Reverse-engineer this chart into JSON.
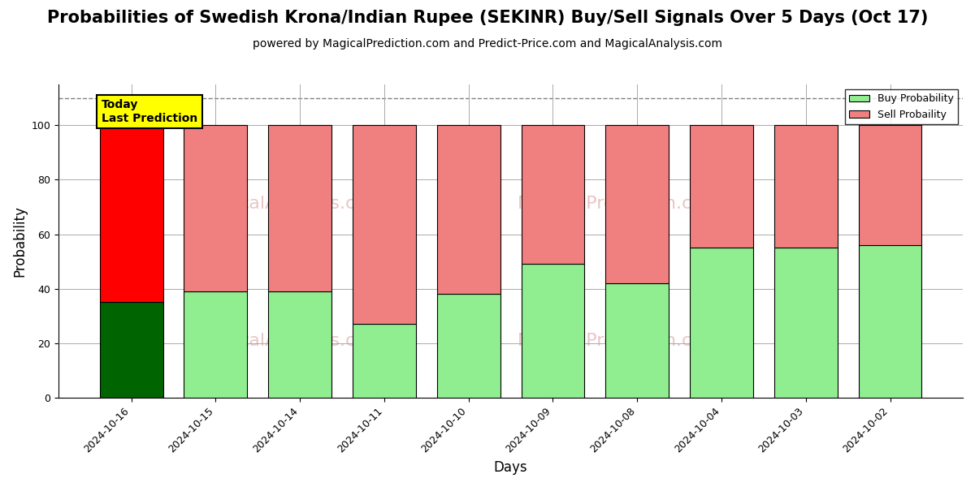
{
  "title": "Probabilities of Swedish Krona/Indian Rupee (SEKINR) Buy/Sell Signals Over 5 Days (Oct 17)",
  "subtitle": "powered by MagicalPrediction.com and Predict-Price.com and MagicalAnalysis.com",
  "xlabel": "Days",
  "ylabel": "Probability",
  "categories": [
    "2024-10-16",
    "2024-10-15",
    "2024-10-14",
    "2024-10-11",
    "2024-10-10",
    "2024-10-09",
    "2024-10-08",
    "2024-10-04",
    "2024-10-03",
    "2024-10-02"
  ],
  "buy_values": [
    35,
    39,
    39,
    27,
    38,
    49,
    42,
    55,
    55,
    56
  ],
  "sell_values": [
    65,
    61,
    61,
    73,
    62,
    51,
    58,
    45,
    45,
    44
  ],
  "today_bar_buy_color": "#006400",
  "today_bar_sell_color": "#FF0000",
  "normal_buy_color": "#90EE90",
  "normal_sell_color": "#F08080",
  "bar_edge_color": "#000000",
  "today_annotation_text": "Today\nLast Prediction",
  "today_annotation_bg": "#FFFF00",
  "legend_buy_label": "Buy Probability",
  "legend_sell_label": "Sell Probaility",
  "ylim_max": 115,
  "yticks": [
    0,
    20,
    40,
    60,
    80,
    100
  ],
  "dashed_line_y": 110,
  "grid_color": "#aaaaaa",
  "background_color": "#ffffff",
  "title_fontsize": 15,
  "subtitle_fontsize": 10,
  "axis_label_fontsize": 12,
  "tick_fontsize": 9,
  "bar_width": 0.75
}
